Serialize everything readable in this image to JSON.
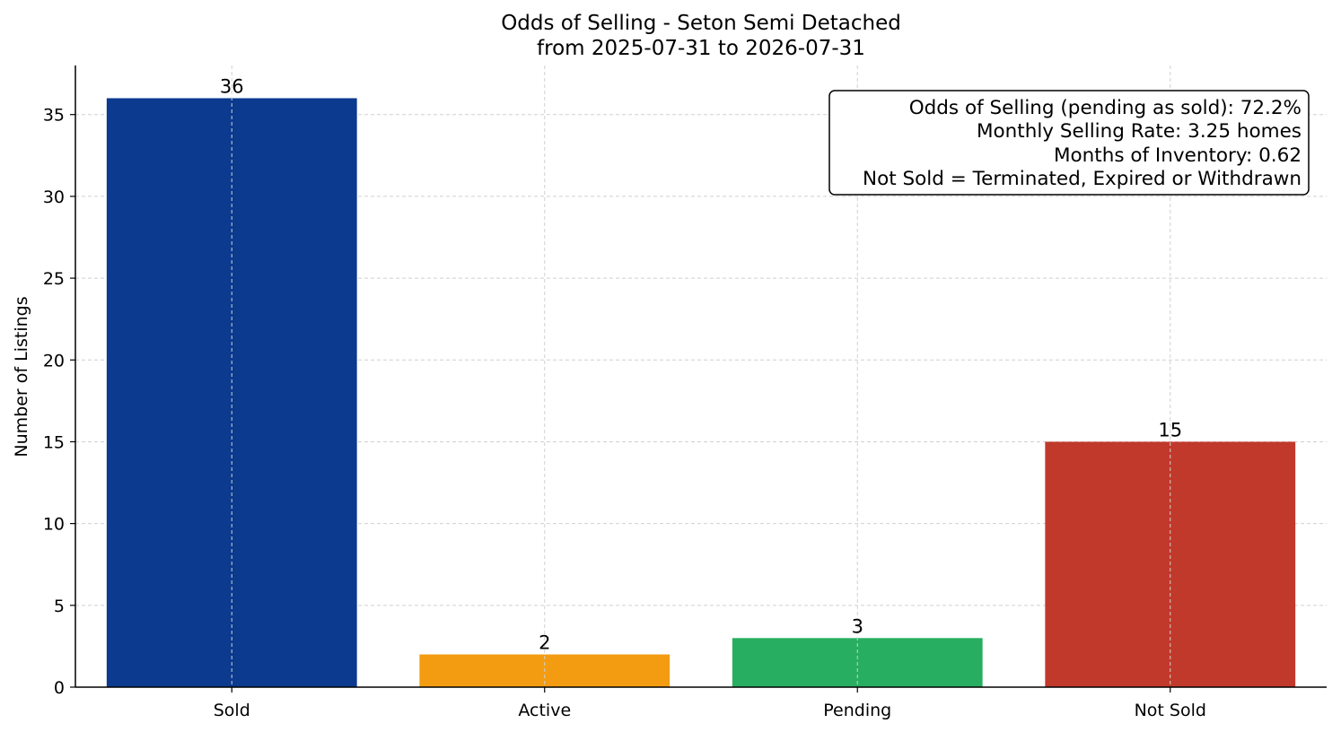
{
  "chart_data": {
    "type": "bar",
    "title": "Odds of Selling - Seton Semi Detached",
    "subtitle": "from 2025-07-31 to 2026-07-31",
    "xlabel": "",
    "ylabel": "Number of Listings",
    "categories": [
      "Sold",
      "Active",
      "Pending",
      "Not Sold"
    ],
    "values": [
      36,
      2,
      3,
      15
    ],
    "colors": [
      "#0b3a8f",
      "#f39c12",
      "#27ae60",
      "#c0392b"
    ],
    "ylim": [
      0,
      38
    ],
    "yticks": [
      0,
      5,
      10,
      15,
      20,
      25,
      30,
      35
    ],
    "grid": true,
    "annotation_box": {
      "placement": "top-right",
      "lines": [
        "Odds of Selling (pending as sold): 72.2%",
        "Monthly Selling Rate: 3.25 homes",
        "Months of Inventory: 0.62",
        "Not Sold = Terminated, Expired or Withdrawn"
      ]
    }
  }
}
